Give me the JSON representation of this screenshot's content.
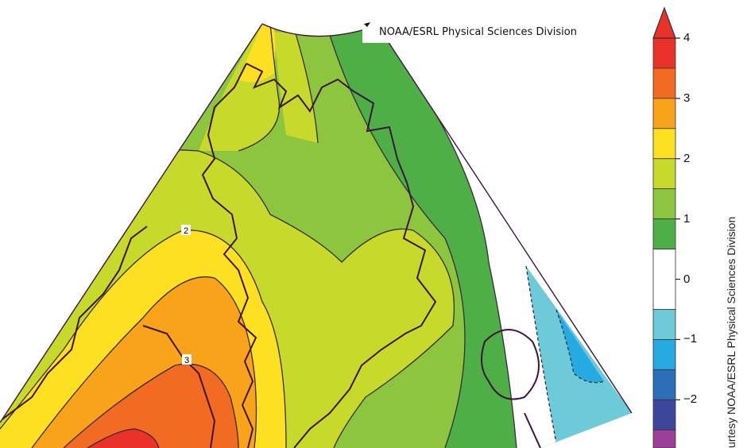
{
  "map": {
    "credit": "NOAA/ESRL Physical Sciences Division",
    "side_credit": "urtesy NOAA/ESRL Physical Sciences Division",
    "contour_labels": [
      "2",
      "3"
    ]
  },
  "colorbar": {
    "ticks": [
      {
        "label": "4",
        "value": 4
      },
      {
        "label": "3",
        "value": 3
      },
      {
        "label": "2",
        "value": 2
      },
      {
        "label": "1",
        "value": 1
      },
      {
        "label": "0",
        "value": 0
      },
      {
        "label": "−1",
        "value": -1
      },
      {
        "label": "−2",
        "value": -2
      }
    ],
    "bins": [
      {
        "from": 3.5,
        "to": 4,
        "color": "#e8322a"
      },
      {
        "from": 3,
        "to": 3.5,
        "color": "#f26b22"
      },
      {
        "from": 2.5,
        "to": 3,
        "color": "#f9a31b"
      },
      {
        "from": 2,
        "to": 2.5,
        "color": "#fde021"
      },
      {
        "from": 1.5,
        "to": 2,
        "color": "#c7d92b"
      },
      {
        "from": 1,
        "to": 1.5,
        "color": "#8cc63e"
      },
      {
        "from": 0.5,
        "to": 1,
        "color": "#4daf45"
      },
      {
        "from": -0.5,
        "to": 0.5,
        "color": "#ffffff"
      },
      {
        "from": -1,
        "to": -0.5,
        "color": "#6ccad9"
      },
      {
        "from": -1.5,
        "to": -1,
        "color": "#27a9e1"
      },
      {
        "from": -2,
        "to": -1.5,
        "color": "#2d6fb7"
      },
      {
        "from": -2.5,
        "to": -2,
        "color": "#3c479c"
      },
      {
        "from": -3,
        "to": -2.5,
        "color": "#9c3f98"
      }
    ],
    "range": [
      -2.8,
      4
    ],
    "overflow_color": "#e8322a"
  }
}
